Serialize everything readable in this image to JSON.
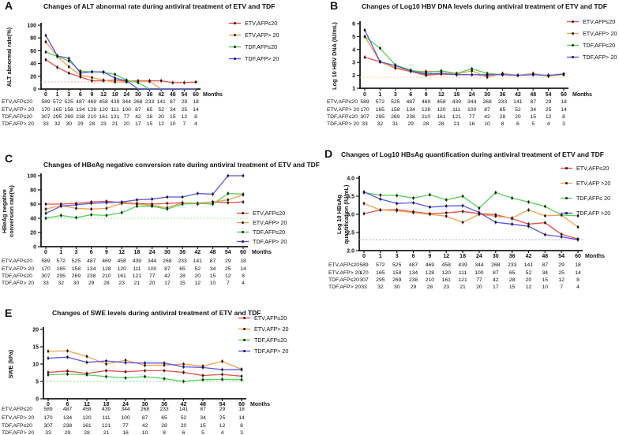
{
  "figure": {
    "background": "#ffffff"
  },
  "colors": {
    "etv_afp_le20": "#e8504a",
    "etv_afp_gt20": "#f5a04b",
    "tdf_afp_le20": "#50d454",
    "tdf_afp_gt20": "#5856e8"
  },
  "chart_data": [
    {
      "letter": "A",
      "type": "line",
      "title": "Changes of ALT abnormal rate during antiviral treatment of ETV and TDF",
      "ylabel_lines": [
        "ALT abnormal rate(%)"
      ],
      "ylim": [
        0,
        100
      ],
      "yticks": [
        0,
        20,
        40,
        60,
        80,
        100
      ],
      "ytick_labels": [
        "0",
        "20",
        "40",
        "60",
        "80",
        "100"
      ],
      "x_labels": [
        "0",
        "1",
        "3",
        "6",
        "9",
        "12",
        "18",
        "24",
        "30",
        "36",
        "42",
        "48",
        "54",
        "60"
      ],
      "months_label": "Months",
      "legend_pos": "right-top",
      "grid": false,
      "ref_line": {
        "value": 11,
        "color": "#f09090"
      },
      "series": [
        {
          "name": "ETV,AFP≤20",
          "color": "#e8504a",
          "values": [
            46,
            34,
            25,
            19,
            13,
            13,
            14,
            12,
            13,
            13,
            13,
            10,
            10,
            11
          ]
        },
        {
          "name": "ETV,AFP> 20",
          "color": "#f5a04b",
          "values": [
            74,
            51,
            35,
            22,
            18,
            14,
            11,
            11,
            12,
            12,
            0,
            0,
            0,
            0
          ]
        },
        {
          "name": "TDF,AFP≤20",
          "color": "#50d454",
          "values": [
            58,
            51,
            44,
            28,
            27,
            26,
            23,
            14,
            10,
            0,
            0,
            0,
            0,
            0
          ]
        },
        {
          "name": "TDF,AFP> 20",
          "color": "#5856e8",
          "values": [
            84,
            52,
            48,
            25,
            27,
            27,
            17,
            13,
            0,
            0,
            0,
            0,
            0,
            0
          ]
        }
      ],
      "table": {
        "row_labels": [
          "ETV,AFP≤20",
          "ETV,AFP> 20",
          "TDF,AFP≤20",
          "TDF,AFP> 20"
        ],
        "rows": [
          [
            589,
            572,
            525,
            487,
            469,
            458,
            439,
            344,
            268,
            233,
            141,
            87,
            29,
            18
          ],
          [
            170,
            165,
            158,
            134,
            128,
            120,
            111,
            100,
            87,
            65,
            52,
            34,
            25,
            14
          ],
          [
            307,
            295,
            269,
            238,
            210,
            161,
            121,
            77,
            42,
            28,
            20,
            15,
            12,
            8
          ],
          [
            33,
            32,
            30,
            29,
            28,
            23,
            21,
            20,
            17,
            15,
            12,
            10,
            7,
            4
          ]
        ]
      }
    },
    {
      "letter": "B",
      "type": "line",
      "title": "Changes of Log10 HBV DNA levels during antiviral treatment of ETV and TDF",
      "ylabel_lines": [
        "Log 10 HBV DNA (IU/mL)"
      ],
      "ylim": [
        1,
        6
      ],
      "yticks": [
        1,
        2,
        3,
        4,
        5,
        6
      ],
      "ytick_labels": [
        "1",
        "2",
        "3",
        "4",
        "5",
        "6"
      ],
      "x_labels": [
        "0",
        "1",
        "3",
        "6",
        "9",
        "12",
        "18",
        "24",
        "30",
        "36",
        "42",
        "48",
        "54",
        "60"
      ],
      "months_label": "Months",
      "legend_pos": "right-top",
      "grid": false,
      "ref_line": {
        "value": 1.85,
        "color": "#f7c98d"
      },
      "series": [
        {
          "name": "ETV,AFP≤20",
          "color": "#e8504a",
          "values": [
            3.4,
            3.05,
            2.55,
            2.3,
            2.0,
            2.1,
            2.05,
            2.05,
            2.0,
            2.1,
            2.0,
            2.1,
            1.95,
            2.1
          ]
        },
        {
          "name": "ETV,AFP> 20",
          "color": "#f5a04b",
          "values": [
            5.0,
            3.05,
            2.6,
            2.35,
            2.3,
            2.3,
            2.1,
            2.35,
            1.85,
            2.15,
            2.0,
            2.15,
            1.95,
            2.05
          ]
        },
        {
          "name": "TDF,AFP≤20",
          "color": "#50d454",
          "values": [
            5.0,
            4.1,
            2.8,
            2.4,
            2.2,
            2.35,
            2.15,
            2.5,
            2.15,
            2.05,
            2.0,
            2.05,
            2.0,
            2.1
          ]
        },
        {
          "name": "TDF,AFP> 20",
          "color": "#5856e8",
          "values": [
            5.5,
            3.05,
            2.75,
            2.35,
            2.1,
            2.15,
            2.05,
            2.05,
            2.05,
            2.05,
            2.0,
            2.05,
            2.0,
            2.1
          ]
        }
      ],
      "table": {
        "row_labels": [
          "ETV,AFP≤20",
          "ETV,AFP> 20",
          "TDF,AFP≤20",
          "TDF,AFP> 20"
        ],
        "rows": [
          [
            589,
            572,
            525,
            487,
            469,
            458,
            439,
            344,
            268,
            233,
            141,
            87,
            29,
            18
          ],
          [
            170,
            165,
            158,
            134,
            128,
            120,
            111,
            100,
            87,
            65,
            52,
            34,
            25,
            14
          ],
          [
            307,
            295,
            269,
            238,
            210,
            161,
            121,
            77,
            42,
            28,
            20,
            15,
            12,
            8
          ],
          [
            33,
            32,
            31,
            29,
            28,
            28,
            21,
            16,
            10,
            8,
            6,
            5,
            4,
            3
          ]
        ]
      }
    },
    {
      "letter": "C",
      "type": "line",
      "title": "Changes of HBeAg negative conversion rate during antiviral treatment of ETV and TDF",
      "ylabel_lines": [
        "HBeAg negative",
        "conversion rate(%)"
      ],
      "ylim": [
        0,
        100
      ],
      "yticks": [
        0,
        20,
        40,
        60,
        80,
        100
      ],
      "ytick_labels": [
        "0",
        "20",
        "40",
        "60",
        "80",
        "100"
      ],
      "x_labels": [
        "0",
        "1",
        "3",
        "6",
        "9",
        "12",
        "18",
        "24",
        "30",
        "36",
        "42",
        "48",
        "54",
        "60"
      ],
      "months_label": "Months",
      "legend_pos": "right-middle",
      "grid": false,
      "ref_line": {
        "value": 40,
        "color": "#90e890"
      },
      "series": [
        {
          "name": "ETV,AFP≤20",
          "color": "#e8504a",
          "values": [
            60,
            60,
            61,
            63,
            64,
            62,
            61,
            60,
            61,
            62,
            61,
            63,
            62,
            63
          ]
        },
        {
          "name": "ETV,AFP> 20",
          "color": "#f5a04b",
          "values": [
            53,
            58,
            54,
            53,
            54,
            61,
            60,
            58,
            55,
            62,
            60,
            63,
            66,
            73
          ]
        },
        {
          "name": "TDF,AFP≤20",
          "color": "#50d454",
          "values": [
            40,
            44,
            41,
            45,
            44,
            48,
            57,
            57,
            53,
            60,
            61,
            60,
            75,
            74
          ]
        },
        {
          "name": "TDF,AFP> 20",
          "color": "#5856e8",
          "values": [
            47,
            57,
            59,
            61,
            62,
            63,
            66,
            67,
            70,
            70,
            75,
            74,
            100,
            100
          ]
        }
      ],
      "table": {
        "row_labels": [
          "ETV,AFP≤20",
          "ETV,AFP> 20",
          "TDF,AFP≤20",
          "TDF,AFP> 20"
        ],
        "rows": [
          [
            589,
            572,
            525,
            487,
            469,
            458,
            439,
            344,
            268,
            233,
            141,
            87,
            29,
            18
          ],
          [
            170,
            165,
            158,
            134,
            128,
            120,
            111,
            100,
            87,
            65,
            52,
            34,
            25,
            14
          ],
          [
            307,
            295,
            269,
            238,
            210,
            161,
            121,
            77,
            42,
            28,
            20,
            15,
            12,
            8
          ],
          [
            33,
            32,
            30,
            29,
            28,
            23,
            21,
            20,
            17,
            15,
            12,
            10,
            7,
            4
          ]
        ]
      }
    },
    {
      "letter": "D",
      "type": "line",
      "title": "Changes of Log10 HBsAg quantification during antiviral treatment of ETV and TDF",
      "ylabel_lines": [
        "Log 10 HBsAg",
        "quantification (IU/mL)"
      ],
      "ylim": [
        2.0,
        4.0
      ],
      "yticks": [
        2.0,
        2.5,
        3.0,
        3.5,
        4.0
      ],
      "ytick_labels": [
        "2.0",
        "2.5",
        "3.0",
        "3.5",
        "4.0"
      ],
      "x_labels": [
        "0",
        "1",
        "3",
        "6",
        "9",
        "12",
        "18",
        "24",
        "30",
        "36",
        "42",
        "48",
        "54",
        "60"
      ],
      "months_label": "Months",
      "legend_pos": "right-top",
      "grid": false,
      "ref_line": {
        "value": 2.3,
        "color": "#9093f0"
      },
      "series": [
        {
          "name": "ETV,AFP≤20",
          "color": "#e8504a",
          "values": [
            3.02,
            3.12,
            3.13,
            3.07,
            3.02,
            3.04,
            3.08,
            3.02,
            2.99,
            2.88,
            2.73,
            2.77,
            2.45,
            2.32
          ]
        },
        {
          "name": "ETV,AFP >20",
          "color": "#f5a04b",
          "values": [
            3.3,
            3.12,
            3.1,
            3.05,
            3.0,
            2.95,
            2.78,
            3.0,
            2.95,
            2.9,
            3.12,
            2.96,
            2.98,
            2.65
          ]
        },
        {
          "name": "TDF,AFP≤ 20",
          "color": "#50d454",
          "values": [
            3.6,
            3.53,
            3.52,
            3.45,
            3.54,
            3.4,
            3.5,
            3.17,
            3.6,
            3.45,
            3.34,
            3.22,
            2.98,
            2.96
          ]
        },
        {
          "name": "TDF,AFP >20",
          "color": "#5856e8",
          "values": [
            3.62,
            3.42,
            3.3,
            3.32,
            3.2,
            3.23,
            3.24,
            3.05,
            2.78,
            2.73,
            2.67,
            2.44,
            2.38,
            2.3
          ]
        }
      ],
      "table": {
        "row_labels": [
          "ETV,AFP≤20",
          "ETV,AFP> 20",
          "TDF,AFP≤20",
          "TDF,AFP> 20"
        ],
        "rows": [
          [
            589,
            572,
            525,
            487,
            469,
            458,
            439,
            344,
            268,
            233,
            141,
            87,
            29,
            18
          ],
          [
            170,
            165,
            158,
            134,
            128,
            120,
            111,
            100,
            87,
            65,
            52,
            34,
            25,
            14
          ],
          [
            307,
            295,
            269,
            238,
            210,
            161,
            121,
            77,
            42,
            28,
            20,
            15,
            12,
            8
          ],
          [
            33,
            32,
            30,
            29,
            28,
            23,
            21,
            20,
            17,
            15,
            12,
            10,
            7,
            4
          ]
        ]
      }
    },
    {
      "letter": "E",
      "type": "line",
      "title": "Changes of SWE levels during antiviral treatment of ETV and TDF",
      "ylabel_lines": [
        "SWE (kPa)"
      ],
      "ylim": [
        0,
        20
      ],
      "yticks": [
        0,
        5,
        10,
        15,
        20
      ],
      "ytick_labels": [
        "0",
        "5",
        "10",
        "15",
        "20"
      ],
      "x_labels": [
        "0",
        "6",
        "12",
        "18",
        "24",
        "30",
        "36",
        "42",
        "48",
        "54",
        "60"
      ],
      "months_label": "Months",
      "legend_pos": "right-top",
      "grid": false,
      "ref_line": {
        "value": 5,
        "color": "#7ddc7d"
      },
      "series": [
        {
          "name": "ETV,AFP≤20",
          "color": "#e8504a",
          "values": [
            7.6,
            8.0,
            7.3,
            8.1,
            7.8,
            8.1,
            8.1,
            7.6,
            6.7,
            7.0,
            6.5
          ]
        },
        {
          "name": "ETV,AFP> 20",
          "color": "#f5a04b",
          "values": [
            13.7,
            13.8,
            12.2,
            10.0,
            11.1,
            9.6,
            9.7,
            10.0,
            9.4,
            10.8,
            8.5
          ]
        },
        {
          "name": "TDF,AFP≤20",
          "color": "#50d454",
          "values": [
            6.9,
            7.1,
            6.9,
            6.4,
            6.0,
            6.4,
            5.8,
            5.0,
            5.5,
            5.6,
            5.5
          ]
        },
        {
          "name": "TDF,AFP> 20",
          "color": "#5856e8",
          "values": [
            11.7,
            12.0,
            10.5,
            10.9,
            10.4,
            10.3,
            10.3,
            9.2,
            9.0,
            8.4,
            8.4
          ]
        }
      ],
      "table": {
        "row_labels": [
          "ETV,AFP≤20",
          "ETV,AFP> 20",
          "TDF,AFP≤20",
          "TDF,AFP> 20"
        ],
        "rows": [
          [
            589,
            487,
            458,
            439,
            344,
            268,
            233,
            141,
            87,
            29,
            18
          ],
          [
            170,
            134,
            120,
            111,
            100,
            87,
            65,
            52,
            34,
            25,
            14
          ],
          [
            307,
            238,
            161,
            121,
            77,
            42,
            28,
            20,
            15,
            12,
            8
          ],
          [
            33,
            29,
            28,
            21,
            16,
            10,
            8,
            6,
            5,
            4,
            3
          ]
        ]
      }
    }
  ]
}
